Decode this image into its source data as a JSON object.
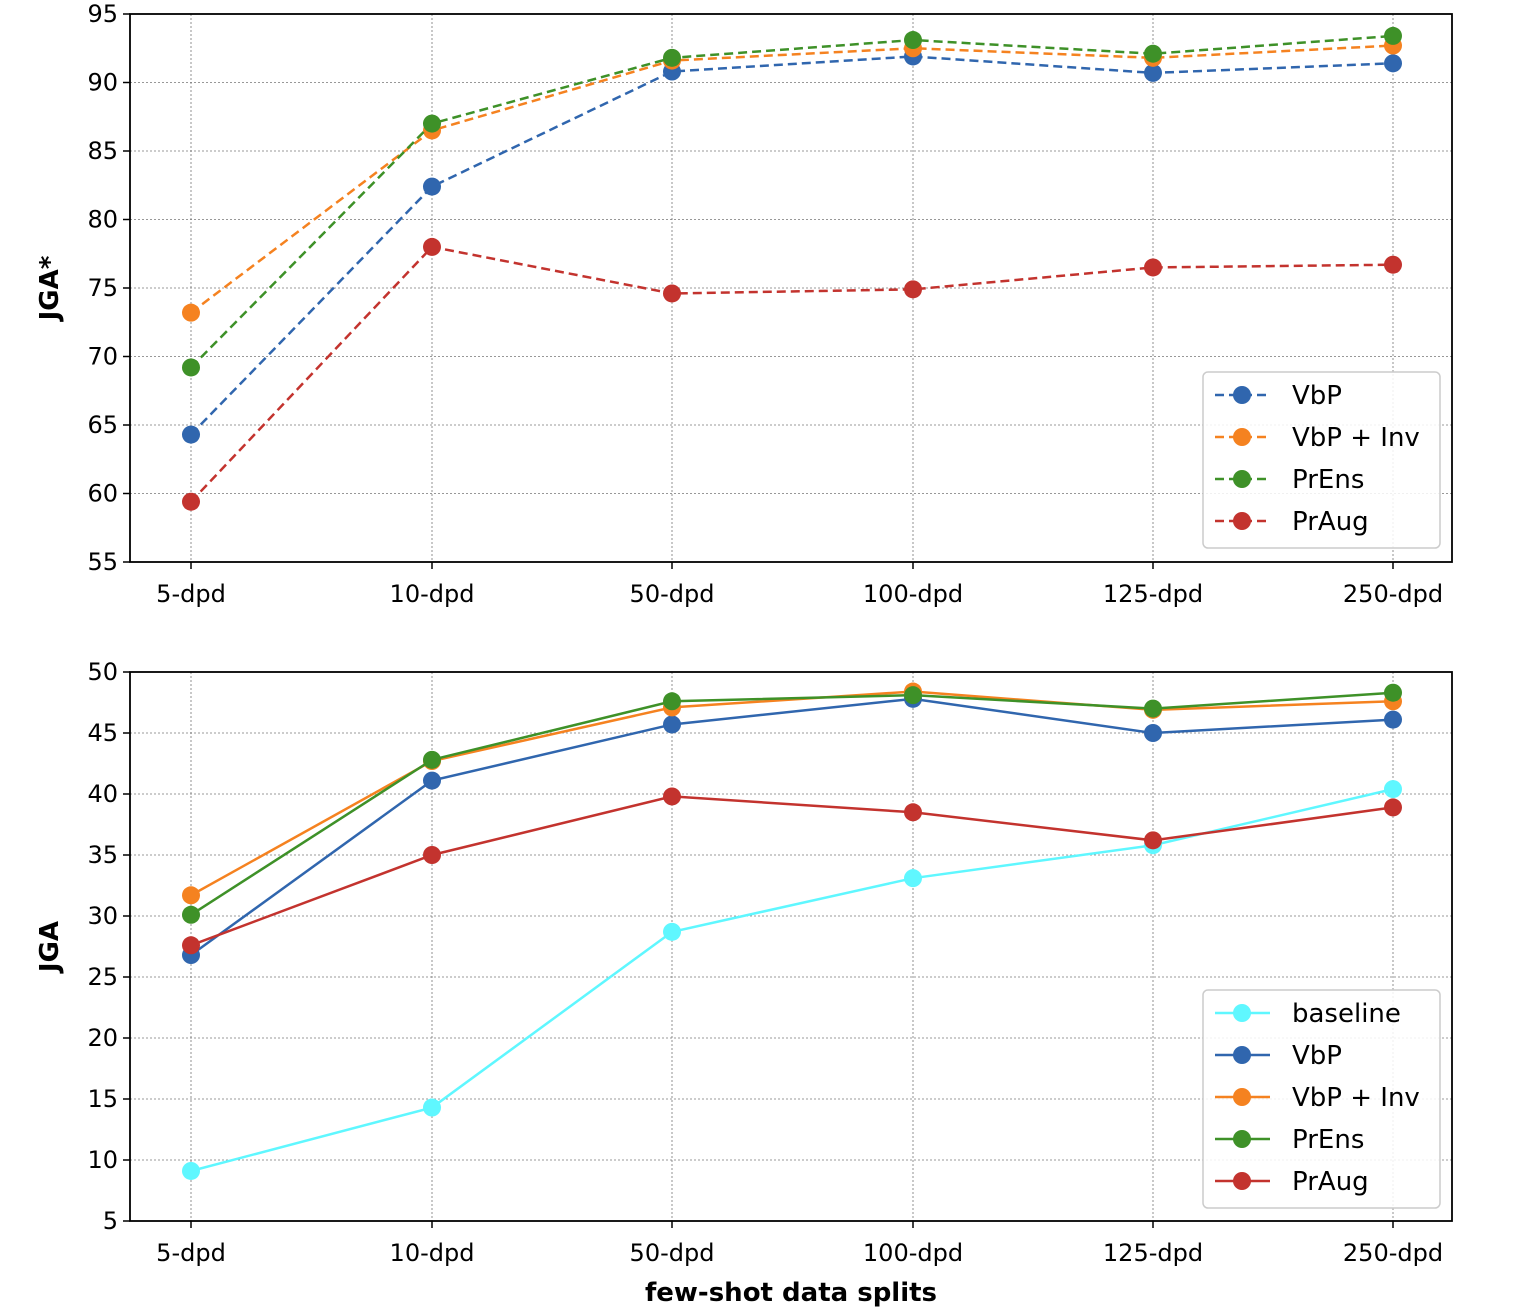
{
  "chart_data": [
    {
      "type": "line",
      "xlabel": "",
      "ylabel": "JGA*",
      "categories": [
        "5-dpd",
        "10-dpd",
        "50-dpd",
        "100-dpd",
        "125-dpd",
        "250-dpd"
      ],
      "ylim": [
        55,
        95
      ],
      "yticks": [
        55,
        60,
        65,
        70,
        75,
        80,
        85,
        90,
        95
      ],
      "grid": true,
      "line_style": "dashed",
      "legend_position": "lower-right",
      "series": [
        {
          "name": "VbP",
          "color": "#3066ae",
          "values": [
            64.3,
            82.4,
            90.8,
            91.9,
            90.7,
            91.4
          ]
        },
        {
          "name": "VbP + Inv",
          "color": "#f58220",
          "values": [
            73.2,
            86.5,
            91.6,
            92.5,
            91.8,
            92.7
          ]
        },
        {
          "name": "PrEns",
          "color": "#3e9128",
          "values": [
            69.2,
            87.0,
            91.8,
            93.1,
            92.1,
            93.4
          ]
        },
        {
          "name": "PrAug",
          "color": "#c3332e",
          "values": [
            59.4,
            78.0,
            74.6,
            74.9,
            76.5,
            76.7
          ]
        }
      ]
    },
    {
      "type": "line",
      "xlabel": "few-shot data splits",
      "ylabel": "JGA",
      "categories": [
        "5-dpd",
        "10-dpd",
        "50-dpd",
        "100-dpd",
        "125-dpd",
        "250-dpd"
      ],
      "ylim": [
        5,
        50
      ],
      "yticks": [
        5,
        10,
        15,
        20,
        25,
        30,
        35,
        40,
        45,
        50
      ],
      "grid": true,
      "line_style": "solid",
      "legend_position": "lower-right",
      "series": [
        {
          "name": "baseline",
          "color": "#5ff7ff",
          "values": [
            9.1,
            14.3,
            28.7,
            33.1,
            35.8,
            40.4
          ]
        },
        {
          "name": "VbP",
          "color": "#3066ae",
          "values": [
            26.8,
            41.1,
            45.7,
            47.8,
            45.0,
            46.1
          ]
        },
        {
          "name": "VbP + Inv",
          "color": "#f58220",
          "values": [
            31.7,
            42.7,
            47.1,
            48.4,
            46.9,
            47.6
          ]
        },
        {
          "name": "PrEns",
          "color": "#3e9128",
          "values": [
            30.1,
            42.8,
            47.6,
            48.1,
            47.0,
            48.3
          ]
        },
        {
          "name": "PrAug",
          "color": "#c3332e",
          "values": [
            27.6,
            35.0,
            39.8,
            38.5,
            36.2,
            38.9
          ]
        }
      ]
    }
  ]
}
